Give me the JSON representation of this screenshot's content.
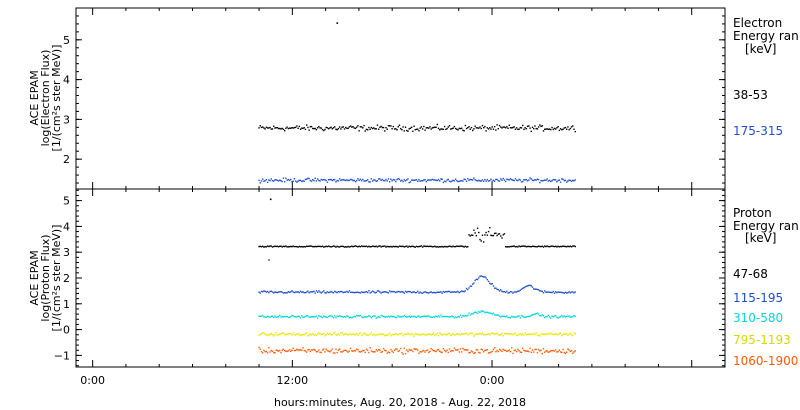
{
  "chart_data": [
    {
      "type": "scatter",
      "panel": "electron",
      "ylabel_lines": [
        "ACE EPAM",
        "log(Electron Flux)",
        "[1/(cm²s ster MeV)]"
      ],
      "ylim": [
        1.25,
        5.8
      ],
      "yticks": [
        2,
        3,
        4,
        5
      ],
      "legend_title": [
        "Electron",
        "Energy ran"
      ],
      "legend_unit": "[keV]",
      "series": [
        {
          "name": "38-53",
          "color": "#000000",
          "x_range": [
            10.0,
            29.0
          ],
          "base": 2.78,
          "noise": 0.06,
          "extra_points": [
            {
              "x": 14.7,
              "y": 5.42
            }
          ]
        },
        {
          "name": "175-315",
          "color": "#1f4fd0",
          "x_range": [
            10.0,
            29.0
          ],
          "base": 1.47,
          "noise": 0.04
        }
      ]
    },
    {
      "type": "scatter",
      "panel": "proton",
      "ylabel_lines": [
        "ACE EPAM",
        "log(Proton Flux)",
        "[1/(cm²s ster MeV)]"
      ],
      "ylim": [
        -1.45,
        5.45
      ],
      "yticks": [
        -1,
        0,
        1,
        2,
        3,
        4,
        5
      ],
      "legend_title": [
        "Proton",
        "Energy ran"
      ],
      "legend_unit": "[keV]",
      "series": [
        {
          "name": "47-68",
          "color": "#000000",
          "x_range": [
            10.0,
            29.0
          ],
          "base": 3.22,
          "noise": 0.02,
          "extra_points": [
            {
              "x": 10.7,
              "y": 5.05
            }
          ]
        },
        {
          "name": "115-195",
          "color": "#1f4fd0",
          "x_range": [
            10.0,
            29.0
          ],
          "base": 1.45,
          "noise": 0.04,
          "extra_points": [
            {
              "x": 10.6,
              "y": 2.7
            }
          ]
        },
        {
          "name": "310-580",
          "color": "#00d8d8",
          "x_range": [
            10.0,
            29.0
          ],
          "base": 0.5,
          "noise": 0.04
        },
        {
          "name": "795-1193",
          "color": "#e8e800",
          "x_range": [
            10.0,
            29.0
          ],
          "base": -0.18,
          "noise": 0.05
        },
        {
          "name": "1060-1900",
          "color": "#ff5a00",
          "x_range": [
            10.0,
            29.0
          ],
          "base": -0.82,
          "noise": 0.09
        }
      ]
    }
  ],
  "x_axis": {
    "label": "hours:minutes, Aug. 20, 2018 - Aug. 22, 2018",
    "xlim": [
      -1,
      38
    ],
    "tick_labels": [
      {
        "x": 0,
        "label": "0:00"
      },
      {
        "x": 12,
        "label": "12:00"
      },
      {
        "x": 24,
        "label": "0:00"
      }
    ],
    "minor_step": 2
  }
}
